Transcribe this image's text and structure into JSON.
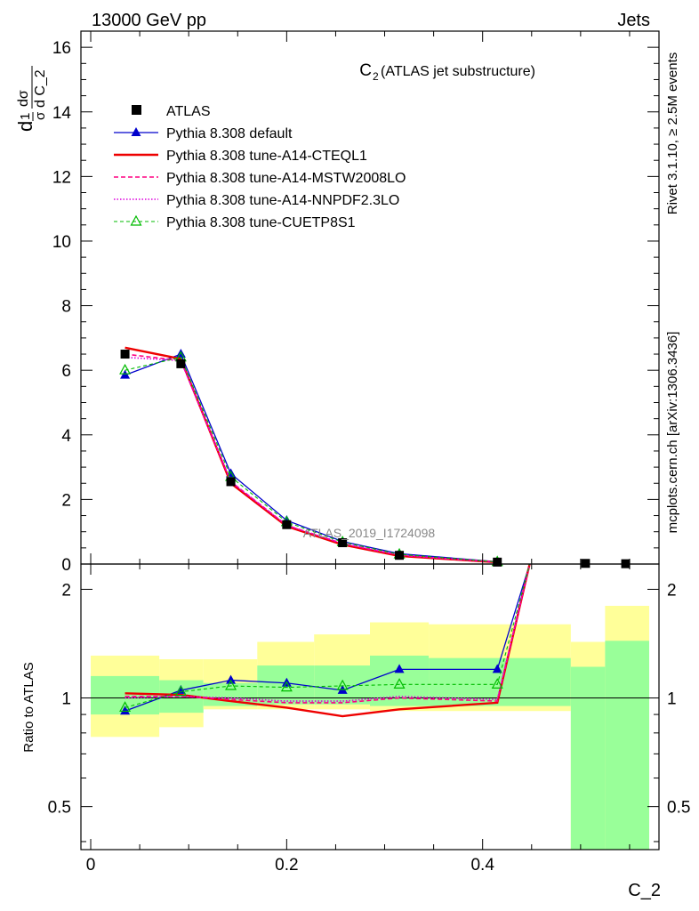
{
  "header": {
    "left": "13000 GeV pp",
    "right": "Jets"
  },
  "side_texts": {
    "rivet": "Rivet 3.1.10, ≥ 2.5M events",
    "mcplots": "mcplots.cern.ch [arXiv:1306.3436]"
  },
  "chart_data": {
    "type": "line",
    "title": "C",
    "title_sub": "2",
    "title_rest": " (ATLAS jet substructure)",
    "watermark": "ATLAS_2019_I1724098",
    "xlabel": "C_2",
    "ylabel_main": {
      "frac_num": "1",
      "frac_den": "σ",
      "d_num": "dσ",
      "d_den": "d C_2",
      "prefix": "d"
    },
    "ylabel_ratio": "Ratio to ATLAS",
    "xlim": [
      -0.01,
      0.58
    ],
    "ylim_main": [
      0,
      16.5
    ],
    "ylim_ratio_log": [
      0.38,
      2.35
    ],
    "x_ticks": [
      {
        "v": 0,
        "label": "0"
      },
      {
        "v": 0.2,
        "label": "0.2"
      },
      {
        "v": 0.4,
        "label": "0.4"
      }
    ],
    "y_ticks_main": [
      {
        "v": 0,
        "label": "0"
      },
      {
        "v": 2,
        "label": "2"
      },
      {
        "v": 4,
        "label": "4"
      },
      {
        "v": 6,
        "label": "6"
      },
      {
        "v": 8,
        "label": "8"
      },
      {
        "v": 10,
        "label": "10"
      },
      {
        "v": 12,
        "label": "12"
      },
      {
        "v": 14,
        "label": "14"
      },
      {
        "v": 16,
        "label": "16"
      }
    ],
    "y_ticks_ratio": [
      {
        "v": 0.5,
        "label": "0.5"
      },
      {
        "v": 1,
        "label": "1"
      },
      {
        "v": 2,
        "label": "2"
      }
    ],
    "data_points": {
      "name": "ATLAS",
      "x": [
        0.035,
        0.092,
        0.143,
        0.2,
        0.257,
        0.315,
        0.415,
        0.505,
        0.546
      ],
      "y": [
        6.5,
        6.2,
        2.55,
        1.22,
        0.66,
        0.27,
        0.06,
        0.02,
        0.01
      ]
    },
    "bands": [
      {
        "x0": 0.0,
        "x1": 0.07,
        "y_lo": 0.78,
        "y_hi": 1.31,
        "g_lo": 0.9,
        "g_hi": 1.15
      },
      {
        "x0": 0.07,
        "x1": 0.115,
        "y_lo": 0.83,
        "y_hi": 1.28,
        "g_lo": 0.91,
        "g_hi": 1.12
      },
      {
        "x0": 0.115,
        "x1": 0.17,
        "y_lo": 0.93,
        "y_hi": 1.28,
        "g_lo": 0.95,
        "g_hi": 1.1
      },
      {
        "x0": 0.17,
        "x1": 0.228,
        "y_lo": 0.93,
        "y_hi": 1.43,
        "g_lo": 0.96,
        "g_hi": 1.23
      },
      {
        "x0": 0.228,
        "x1": 0.285,
        "y_lo": 0.93,
        "y_hi": 1.5,
        "g_lo": 0.96,
        "g_hi": 1.23
      },
      {
        "x0": 0.285,
        "x1": 0.345,
        "y_lo": 0.92,
        "y_hi": 1.62,
        "g_lo": 0.95,
        "g_hi": 1.31
      },
      {
        "x0": 0.345,
        "x1": 0.49,
        "y_lo": 0.92,
        "y_hi": 1.6,
        "g_lo": 0.95,
        "g_hi": 1.29
      },
      {
        "x0": 0.49,
        "x1": 0.525,
        "y_lo": 0.38,
        "y_hi": 1.43,
        "g_lo": 0.38,
        "g_hi": 1.22
      },
      {
        "x0": 0.525,
        "x1": 0.57,
        "y_lo": 0.38,
        "y_hi": 1.8,
        "g_lo": 0.38,
        "g_hi": 1.44
      }
    ],
    "series": [
      {
        "name": "Pythia 8.308 default",
        "color": "#0000cc",
        "dash": "",
        "marker": "triangle-filled",
        "width": 1.3,
        "x": [
          0.035,
          0.092,
          0.143,
          0.2,
          0.257,
          0.315,
          0.415
        ],
        "y": [
          5.85,
          6.5,
          2.8,
          1.35,
          0.7,
          0.32,
          0.07
        ],
        "ratio": [
          0.92,
          1.05,
          1.12,
          1.1,
          1.05,
          1.2,
          1.2
        ]
      },
      {
        "name": "Pythia 8.308 tune-A14-CTEQL1",
        "color": "#ee0000",
        "dash": "",
        "marker": "none",
        "width": 2.4,
        "x": [
          0.035,
          0.092,
          0.143,
          0.2,
          0.257,
          0.315,
          0.415
        ],
        "y": [
          6.7,
          6.35,
          2.5,
          1.17,
          0.6,
          0.25,
          0.055
        ],
        "ratio": [
          1.03,
          1.02,
          0.98,
          0.94,
          0.89,
          0.93,
          0.97
        ]
      },
      {
        "name": "Pythia 8.308 tune-A14-MSTW2008LO",
        "color": "#ff0080",
        "dash": "5,3",
        "marker": "none",
        "width": 1.6,
        "x": [
          0.035,
          0.092,
          0.143,
          0.2,
          0.257,
          0.315,
          0.415
        ],
        "y": [
          6.5,
          6.3,
          2.55,
          1.2,
          0.63,
          0.27,
          0.06
        ],
        "ratio": [
          1.01,
          1.01,
          0.99,
          0.97,
          0.97,
          1.0,
          0.98
        ]
      },
      {
        "name": "Pythia 8.308 tune-A14-NNPDF2.3LO",
        "color": "#dd00dd",
        "dash": "1.5,2",
        "marker": "none",
        "width": 1.6,
        "x": [
          0.035,
          0.092,
          0.143,
          0.2,
          0.257,
          0.315,
          0.415
        ],
        "y": [
          6.4,
          6.3,
          2.55,
          1.2,
          0.64,
          0.28,
          0.06
        ],
        "ratio": [
          1.0,
          1.01,
          1.0,
          0.98,
          0.98,
          1.01,
          0.99
        ]
      },
      {
        "name": "Pythia 8.308 tune-CUETP8S1",
        "color": "#00bb00",
        "dash": "4,3",
        "marker": "triangle-open",
        "width": 1.1,
        "x": [
          0.035,
          0.092,
          0.143,
          0.2,
          0.257,
          0.315,
          0.415
        ],
        "y": [
          6.0,
          6.4,
          2.7,
          1.3,
          0.68,
          0.3,
          0.065
        ],
        "ratio": [
          0.94,
          1.04,
          1.08,
          1.07,
          1.08,
          1.09,
          1.09
        ]
      }
    ],
    "legend_placement": "top-left"
  }
}
